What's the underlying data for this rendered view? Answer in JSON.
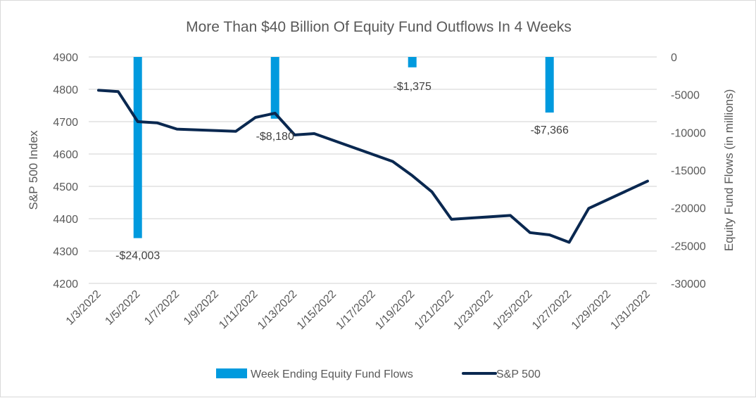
{
  "chart_data": {
    "type": "bar+line",
    "title": "More Than $40 Billion Of Equity Fund Outflows In 4 Weeks",
    "x_tick_labels": [
      "1/3/2022",
      "1/5/2022",
      "1/7/2022",
      "1/9/2022",
      "1/11/2022",
      "1/13/2022",
      "1/15/2022",
      "1/17/2022",
      "1/19/2022",
      "1/21/2022",
      "1/23/2022",
      "1/25/2022",
      "1/27/2022",
      "1/29/2022",
      "1/31/2022"
    ],
    "x_range_days": [
      3,
      31
    ],
    "y_left": {
      "label": "S&P 500 Index",
      "range": [
        4200,
        4900
      ],
      "ticks": [
        4900,
        4800,
        4700,
        4600,
        4500,
        4400,
        4300,
        4200
      ]
    },
    "y_right": {
      "label": "Equity Fund Flows (in millions)",
      "range": [
        -30000,
        0
      ],
      "ticks": [
        0,
        -5000,
        -10000,
        -15000,
        -20000,
        -25000,
        -30000
      ]
    },
    "grid": true,
    "legend_position": "bottom",
    "series": [
      {
        "name": "Week Ending Equity Fund Flows",
        "type": "bar",
        "axis": "right",
        "color": "#009ADE",
        "points": [
          {
            "day": 5,
            "value": -24003,
            "label": "-$24,003"
          },
          {
            "day": 12,
            "value": -8180,
            "label": "-$8,180"
          },
          {
            "day": 19,
            "value": -1375,
            "label": "-$1,375"
          },
          {
            "day": 26,
            "value": -7366,
            "label": "-$7,366"
          }
        ]
      },
      {
        "name": "S&P 500",
        "type": "line",
        "axis": "left",
        "color": "#0A2850",
        "points": [
          {
            "day": 3,
            "value": 4797
          },
          {
            "day": 4,
            "value": 4793
          },
          {
            "day": 5,
            "value": 4700
          },
          {
            "day": 6,
            "value": 4696
          },
          {
            "day": 7,
            "value": 4677
          },
          {
            "day": 10,
            "value": 4670
          },
          {
            "day": 11,
            "value": 4713
          },
          {
            "day": 12,
            "value": 4726
          },
          {
            "day": 13,
            "value": 4659
          },
          {
            "day": 14,
            "value": 4663
          },
          {
            "day": 18,
            "value": 4577
          },
          {
            "day": 19,
            "value": 4533
          },
          {
            "day": 20,
            "value": 4483
          },
          {
            "day": 21,
            "value": 4398
          },
          {
            "day": 24,
            "value": 4410
          },
          {
            "day": 25,
            "value": 4357
          },
          {
            "day": 26,
            "value": 4350
          },
          {
            "day": 27,
            "value": 4327
          },
          {
            "day": 28,
            "value": 4432
          },
          {
            "day": 31,
            "value": 4516
          }
        ]
      }
    ]
  }
}
